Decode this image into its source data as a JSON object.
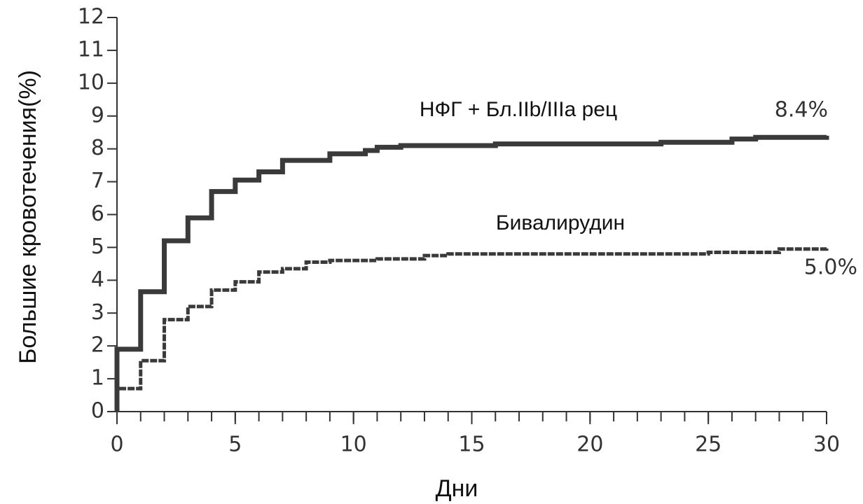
{
  "chart_data": {
    "type": "line",
    "step_corners": true,
    "x_label": "Дни",
    "y_label": "Большие кровотечения(%)",
    "xlim": [
      0,
      30
    ],
    "ylim": [
      0,
      12
    ],
    "xticks": [
      0,
      5,
      10,
      15,
      20,
      25,
      30
    ],
    "x_minor_ticks": [
      0,
      1,
      2,
      3,
      4,
      5,
      6,
      7,
      8,
      9,
      10,
      11,
      12,
      13,
      14,
      15,
      16,
      17,
      18,
      19,
      20,
      21,
      22,
      23,
      24,
      25,
      26,
      27,
      28,
      29,
      30
    ],
    "yticks": [
      0,
      1,
      2,
      3,
      4,
      5,
      6,
      7,
      8,
      9,
      10,
      11,
      12
    ],
    "series": [
      {
        "name": "НФГ + Бл.IIb/IIIa рец",
        "color": "#3a3a3a",
        "end_label": "8.4%",
        "x": [
          0,
          0,
          1,
          1,
          2,
          2,
          3,
          3,
          4,
          4,
          5,
          5,
          6,
          6,
          7,
          7,
          9,
          9,
          10.5,
          10.5,
          11,
          11,
          12,
          12,
          16,
          16,
          23,
          23,
          26,
          26,
          27,
          27,
          30,
          30
        ],
        "values": [
          0,
          1.9,
          1.9,
          3.65,
          3.65,
          5.2,
          5.2,
          5.9,
          5.9,
          6.7,
          6.7,
          7.05,
          7.05,
          7.3,
          7.3,
          7.65,
          7.65,
          7.85,
          7.85,
          7.95,
          7.95,
          8.05,
          8.05,
          8.1,
          8.1,
          8.15,
          8.15,
          8.2,
          8.2,
          8.3,
          8.3,
          8.35,
          8.35,
          8.4
        ]
      },
      {
        "name": "Бивалирудин",
        "color": "#3a3a3a",
        "end_label": "5.0%",
        "x": [
          0,
          0,
          1,
          1,
          2,
          2,
          3,
          3,
          4,
          4,
          5,
          5,
          6,
          6,
          7,
          7,
          8,
          8,
          9,
          9,
          11,
          11,
          13,
          13,
          14,
          14,
          25,
          25,
          28,
          28,
          30,
          30
        ],
        "values": [
          0,
          0.7,
          0.7,
          1.55,
          1.55,
          2.8,
          2.8,
          3.2,
          3.2,
          3.7,
          3.7,
          3.95,
          3.95,
          4.25,
          4.25,
          4.35,
          4.35,
          4.55,
          4.55,
          4.6,
          4.6,
          4.65,
          4.65,
          4.75,
          4.75,
          4.8,
          4.8,
          4.85,
          4.85,
          4.95,
          4.95,
          5.0
        ]
      }
    ]
  }
}
